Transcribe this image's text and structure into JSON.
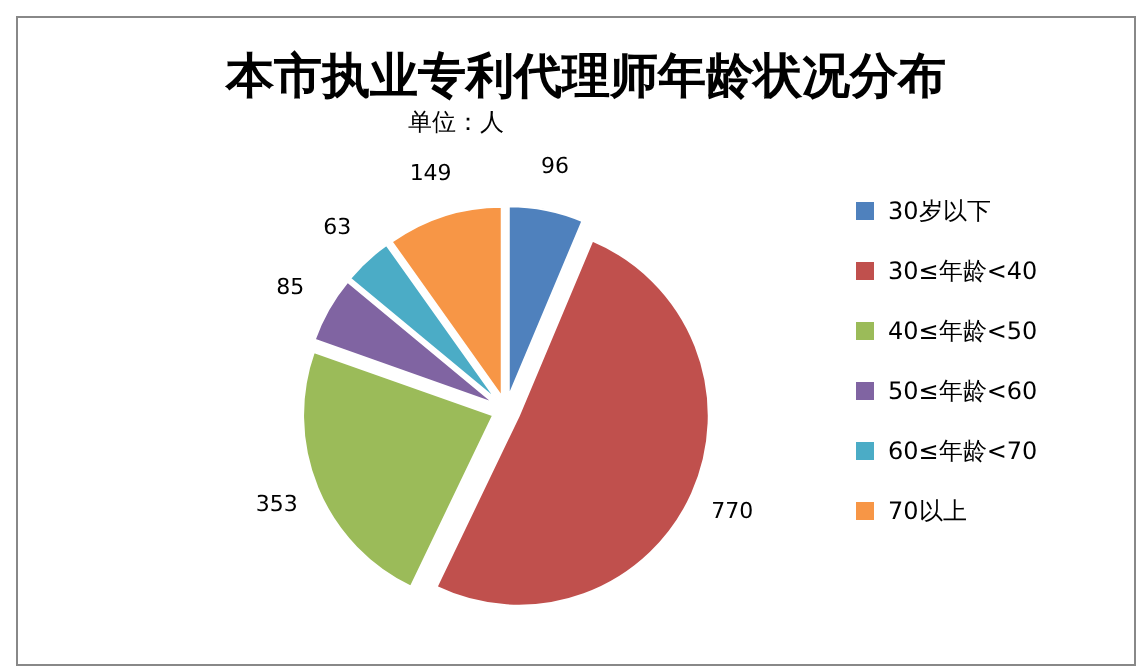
{
  "chart_data": {
    "type": "pie",
    "title": "本市执业专利代理师年龄状况分布",
    "subtitle": "单位：人",
    "categories": [
      "30岁以下",
      "30≤年龄<40",
      "40≤年龄<50",
      "50≤年龄<60",
      "60≤年龄<70",
      "70以上"
    ],
    "values": [
      96,
      770,
      353,
      85,
      63,
      149
    ],
    "colors": [
      "#4f81bd",
      "#c0504d",
      "#9bbb59",
      "#8064a2",
      "#4bacc6",
      "#f79646"
    ],
    "data_labels": true,
    "legend": "right"
  }
}
